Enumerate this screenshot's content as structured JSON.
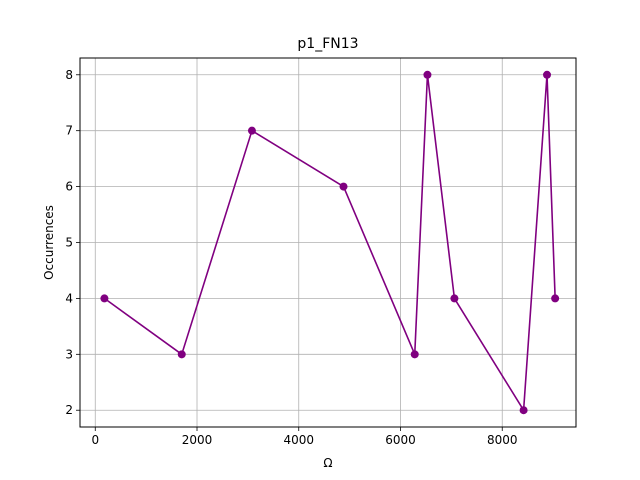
{
  "chart_data": {
    "type": "line",
    "title": "p1_FN13",
    "xlabel": "Ω",
    "ylabel": "Occurrences",
    "xlim": [
      -300,
      9450
    ],
    "ylim": [
      1.7,
      8.3
    ],
    "xticks": [
      0,
      2000,
      4000,
      6000,
      8000
    ],
    "yticks": [
      2,
      3,
      4,
      5,
      6,
      7,
      8
    ],
    "grid": true,
    "colors": {
      "series": "#800080"
    },
    "series": [
      {
        "x": [
          180,
          1700,
          3080,
          4880,
          6280,
          6530,
          7060,
          8420,
          8880,
          9040
        ],
        "y": [
          4,
          3,
          7,
          6,
          3,
          8,
          4,
          2,
          8,
          4
        ]
      }
    ]
  }
}
